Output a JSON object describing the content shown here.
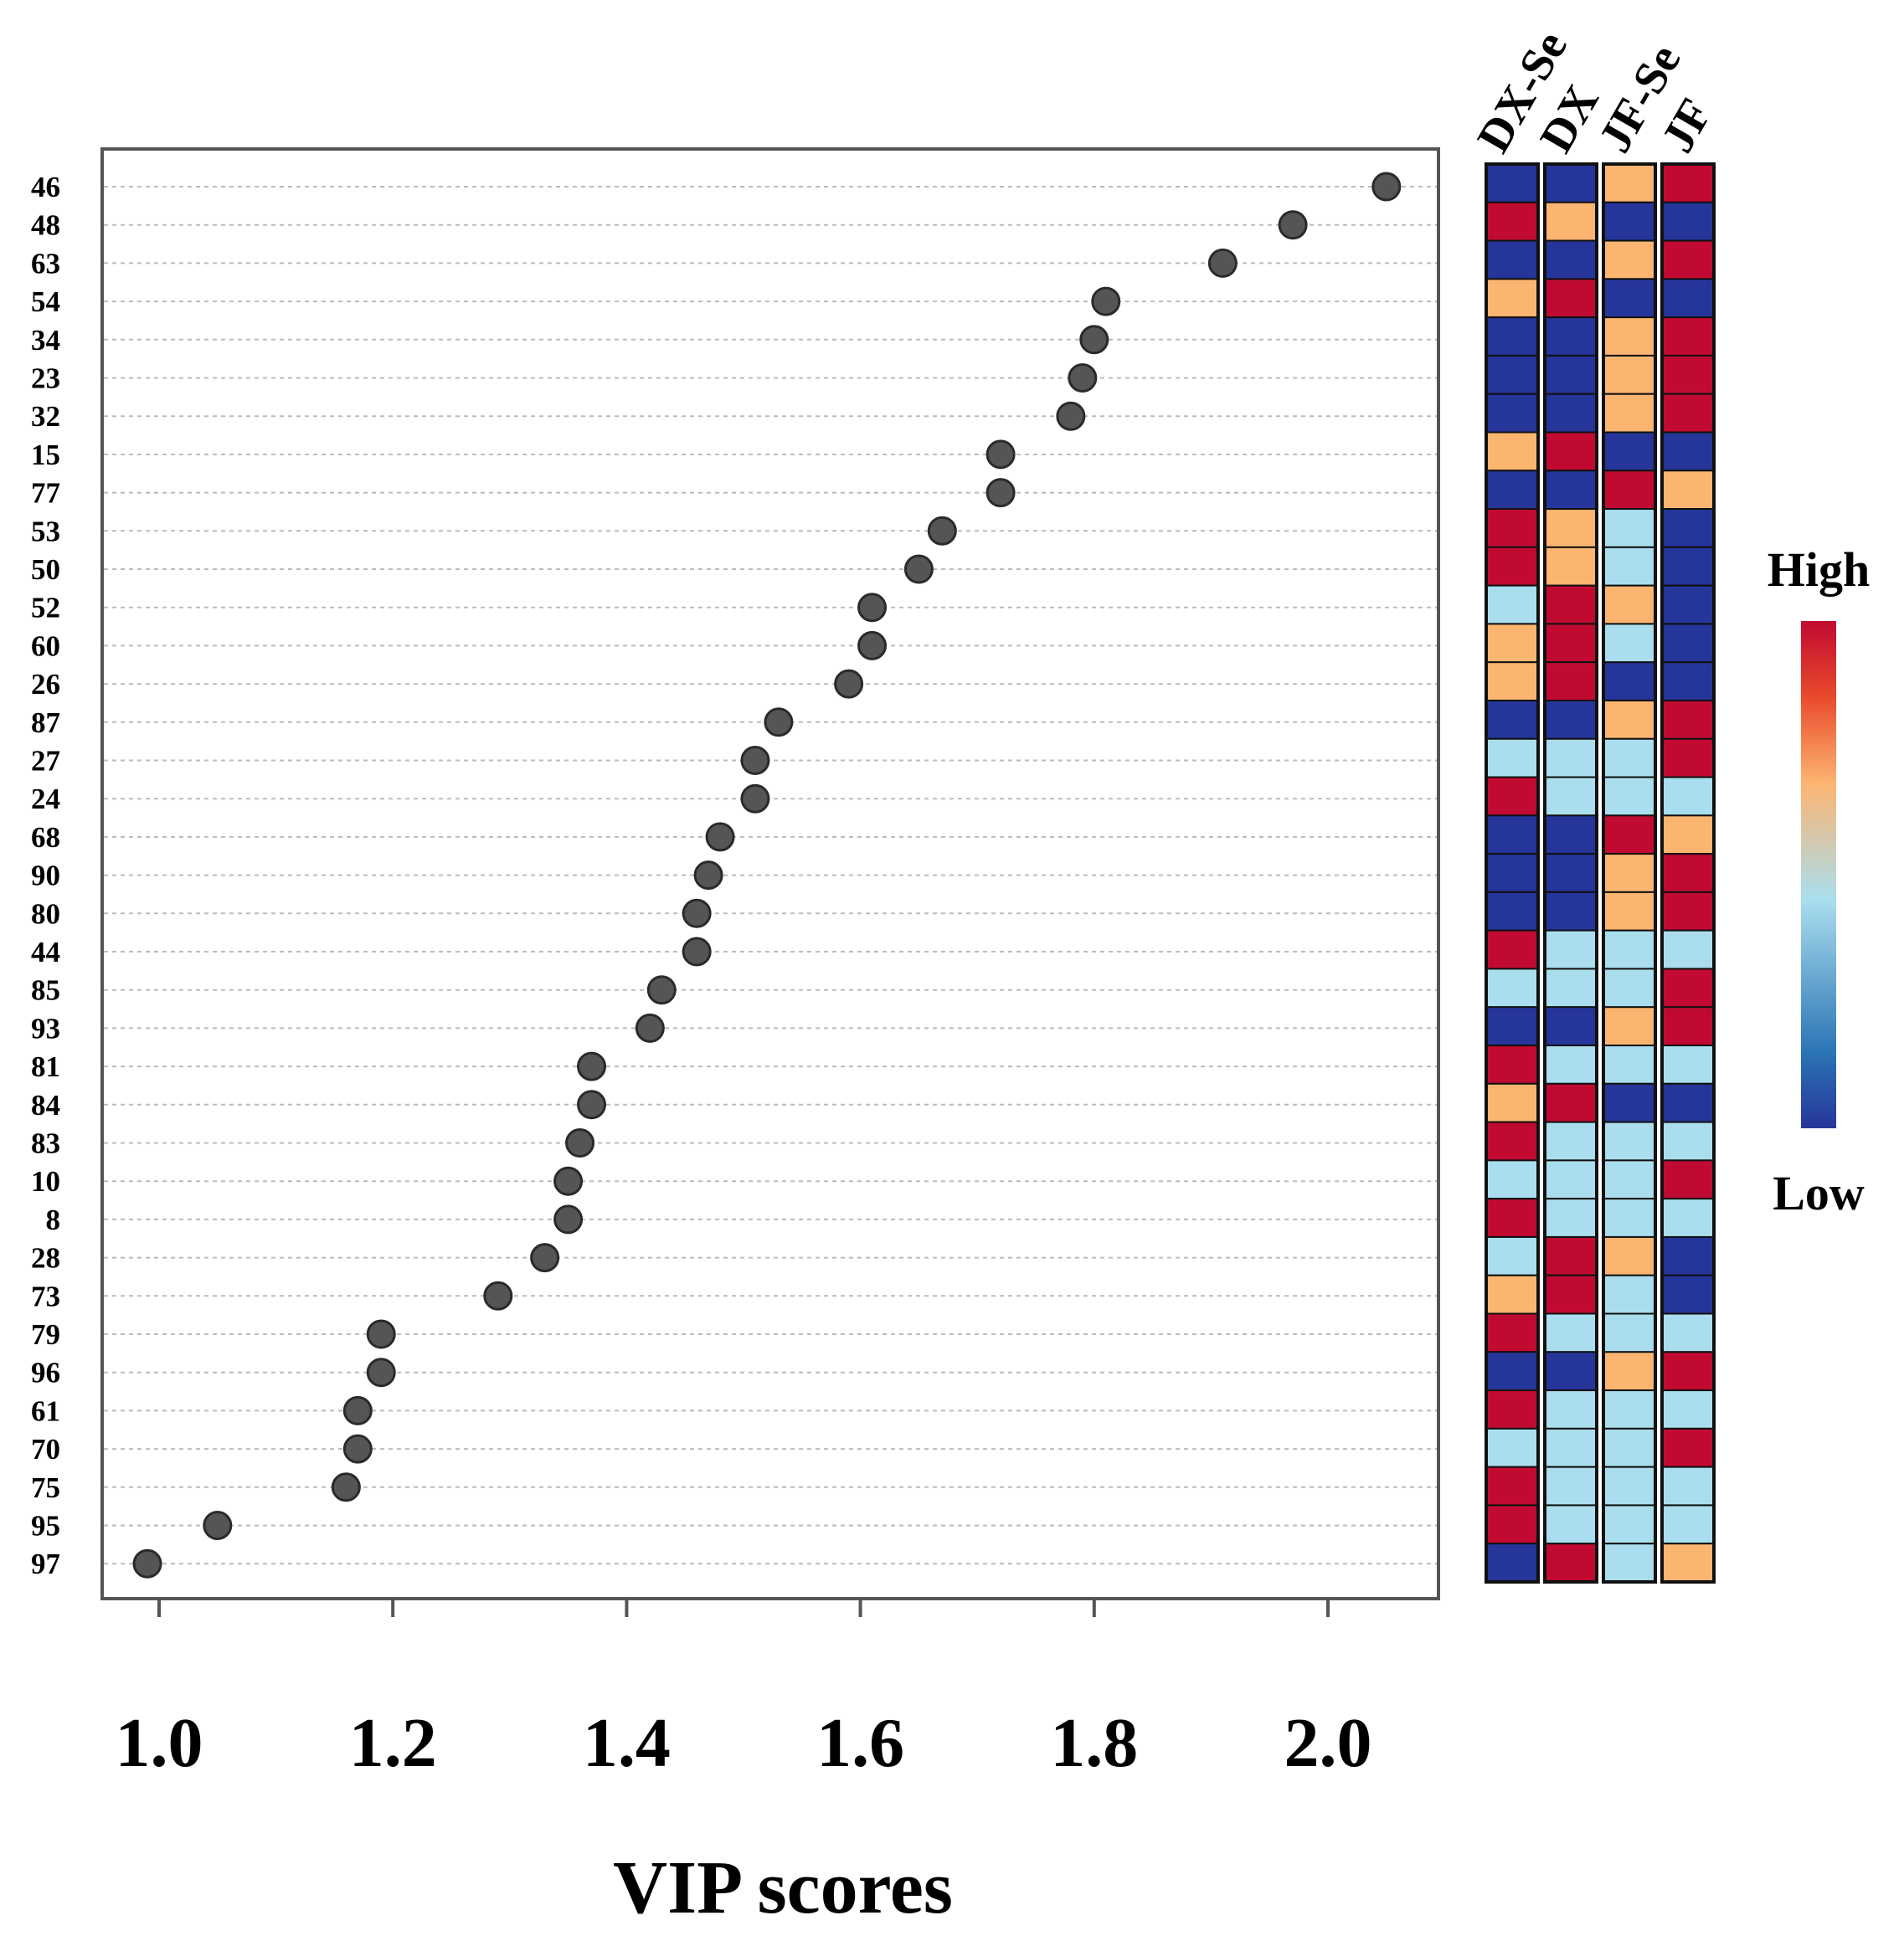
{
  "chart_data": {
    "type": "scatter",
    "xlabel": "VIP scores",
    "xlim": [
      0.95,
      2.1
    ],
    "xticks": [
      1.0,
      1.2,
      1.4,
      1.6,
      1.8,
      2.0
    ],
    "xtick_labels": [
      "1.0",
      "1.2",
      "1.4",
      "1.6",
      "1.8",
      "2.0"
    ],
    "grid": "horizontal dotted",
    "features": [
      "46",
      "48",
      "63",
      "54",
      "34",
      "23",
      "32",
      "15",
      "77",
      "53",
      "50",
      "52",
      "60",
      "26",
      "87",
      "27",
      "24",
      "68",
      "90",
      "80",
      "44",
      "85",
      "93",
      "81",
      "84",
      "83",
      "10",
      "8",
      "28",
      "73",
      "79",
      "96",
      "61",
      "70",
      "75",
      "95",
      "97"
    ],
    "vip": [
      2.05,
      1.97,
      1.91,
      1.81,
      1.8,
      1.79,
      1.78,
      1.72,
      1.72,
      1.67,
      1.65,
      1.61,
      1.61,
      1.59,
      1.53,
      1.51,
      1.51,
      1.48,
      1.47,
      1.46,
      1.46,
      1.43,
      1.42,
      1.37,
      1.37,
      1.36,
      1.35,
      1.35,
      1.33,
      1.29,
      1.19,
      1.19,
      1.17,
      1.17,
      1.16,
      1.05,
      0.99
    ],
    "heatmap": {
      "columns": [
        "DX-Se",
        "DX",
        "JF-Se",
        "JF"
      ],
      "levels": {
        "H": "#c10a32",
        "M": "#fcb571",
        "L": "#aadeee",
        "N": "#26359a"
      },
      "rows": [
        "NNMH",
        "HMNN",
        "NNMH",
        "MHNN",
        "NNMH",
        "NNMH",
        "NNMH",
        "MHNN",
        "NNHM",
        "HMLN",
        "HMLN",
        "LHMN",
        "MHLN",
        "MHNN",
        "NNMH",
        "LLLH",
        "HLLL",
        "NNHM",
        "NNMH",
        "NNMH",
        "HLLL",
        "LLLH",
        "NNMH",
        "HLLL",
        "MHNN",
        "HLLL",
        "LLLH",
        "HLLL",
        "LHMN",
        "MHLN",
        "HLLL",
        "NNMH",
        "HLLL",
        "LLLH",
        "HLLL",
        "HLLL",
        "NHLM"
      ]
    },
    "legend": {
      "high": "High",
      "low": "Low",
      "colors": [
        "#26359a",
        "#2b74b5",
        "#aadeee",
        "#fcb571",
        "#e94a2b",
        "#c10a32"
      ]
    }
  }
}
